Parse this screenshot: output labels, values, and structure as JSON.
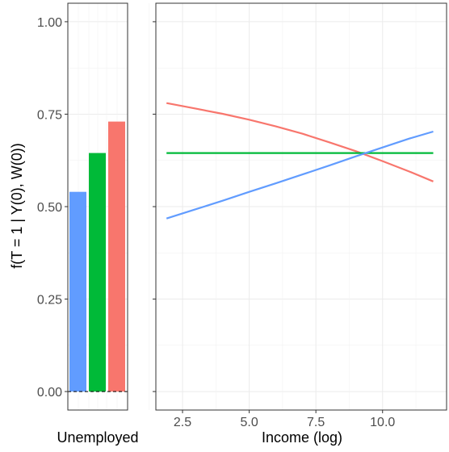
{
  "chart_data": [
    {
      "type": "bar",
      "panel": "left",
      "xlabel": "Unemployed",
      "ylabel": "f(T = 1 | Y(0), W(0))",
      "ylim": [
        0,
        1
      ],
      "yticks": [
        "0.00",
        "0.25",
        "0.50",
        "0.75",
        "1.00"
      ],
      "grid": true,
      "reference_line": {
        "y": 0,
        "style": "dashed"
      },
      "series": [
        {
          "color": "#619CFF",
          "values": [
            0.54
          ]
        },
        {
          "color": "#00BA38",
          "values": [
            0.645
          ]
        },
        {
          "color": "#F8766D",
          "values": [
            0.73
          ]
        }
      ]
    },
    {
      "type": "line",
      "panel": "right",
      "xlabel": "Income (log)",
      "xlim": [
        1.5,
        12.4
      ],
      "ylim": [
        0,
        1
      ],
      "xticks": [
        "2.5",
        "5.0",
        "7.5",
        "10.0"
      ],
      "grid": true,
      "series": [
        {
          "color": "#F8766D",
          "x": [
            1.9,
            3,
            4,
            5,
            6,
            7,
            8,
            9,
            10,
            11,
            11.9
          ],
          "y": [
            0.78,
            0.765,
            0.751,
            0.735,
            0.717,
            0.697,
            0.674,
            0.65,
            0.623,
            0.595,
            0.568
          ]
        },
        {
          "color": "#00BA38",
          "x": [
            1.9,
            11.9
          ],
          "y": [
            0.645,
            0.645
          ]
        },
        {
          "color": "#619CFF",
          "x": [
            1.9,
            3,
            4,
            5,
            6,
            7,
            8,
            9,
            10,
            11,
            11.9
          ],
          "y": [
            0.468,
            0.493,
            0.516,
            0.54,
            0.563,
            0.587,
            0.611,
            0.636,
            0.66,
            0.684,
            0.703
          ]
        }
      ]
    }
  ]
}
